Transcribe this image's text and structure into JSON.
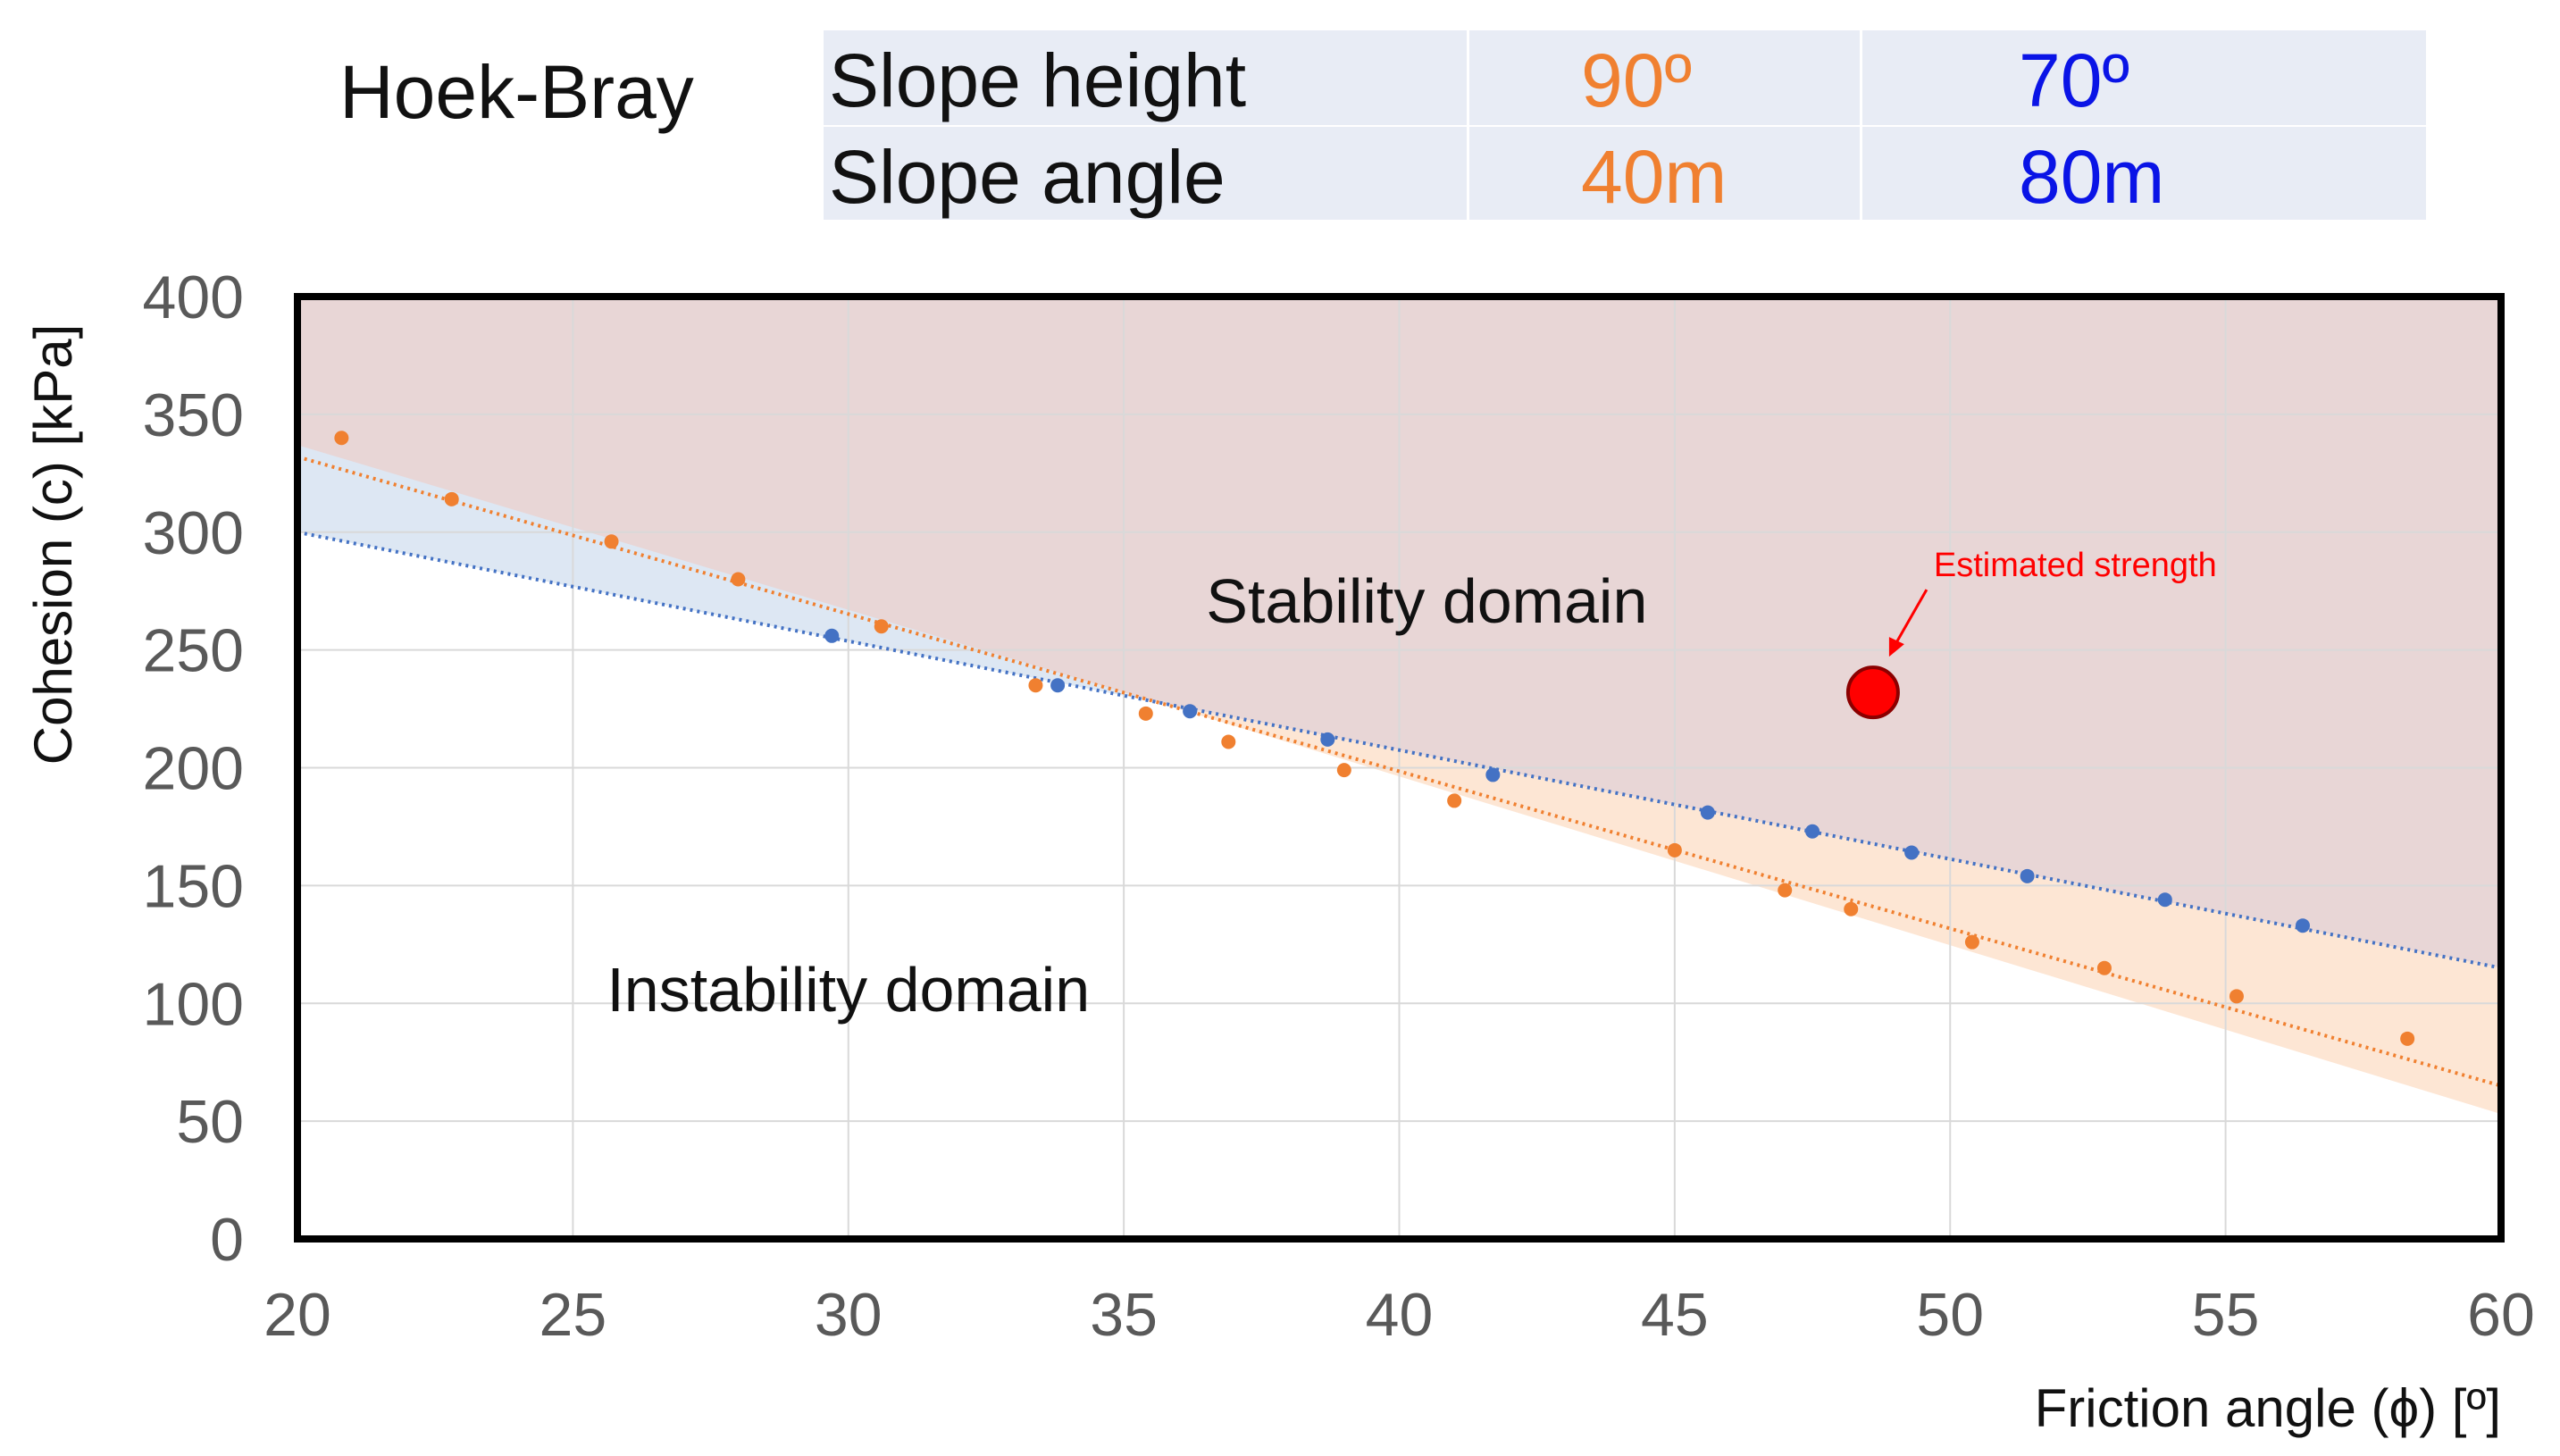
{
  "header": {
    "title": "Hoek-Bray",
    "rows": [
      {
        "label": "Slope height",
        "orange": "90º",
        "blue": "70º"
      },
      {
        "label": "Slope angle",
        "orange": "40m",
        "blue": "80m"
      }
    ]
  },
  "chart_data": {
    "type": "scatter",
    "xlabel": "Friction angle (ϕ) [º]",
    "ylabel": "Cohesion (c) [kPa]",
    "xlim": [
      20,
      60
    ],
    "ylim": [
      0,
      400
    ],
    "xticks": [
      20,
      25,
      30,
      35,
      40,
      45,
      50,
      55,
      60
    ],
    "yticks": [
      0,
      50,
      100,
      150,
      200,
      250,
      300,
      350,
      400
    ],
    "grid": true,
    "colors": {
      "orange": "#f08030",
      "blue": "#4472c4",
      "stable_fill": "#e8d6d6",
      "orange_band": "#fde6d4",
      "blue_band": "#dde7f3",
      "estimate": "#ff0000"
    },
    "series": [
      {
        "name": "90º / 40m",
        "color": "#f08030",
        "x": [
          20.8,
          22.8,
          25.7,
          28.0,
          30.6,
          33.4,
          35.4,
          36.9,
          39.0,
          41.0,
          45.0,
          47.0,
          48.2,
          50.4,
          52.8,
          55.2,
          58.3
        ],
        "y": [
          340,
          314,
          296,
          280,
          260,
          235,
          223,
          211,
          199,
          186,
          165,
          148,
          140,
          126,
          115,
          103,
          85
        ],
        "trend": {
          "x": [
            20,
            60
          ],
          "y": [
            332,
            65
          ]
        }
      },
      {
        "name": "70º / 80m",
        "color": "#4472c4",
        "x": [
          29.7,
          33.8,
          36.2,
          38.7,
          41.7,
          45.6,
          47.5,
          49.3,
          51.4,
          53.9,
          56.4
        ],
        "y": [
          256,
          235,
          224,
          212,
          197,
          181,
          173,
          164,
          154,
          144,
          133
        ],
        "trend": {
          "x": [
            20,
            60
          ],
          "y": [
            300,
            115
          ]
        }
      }
    ],
    "annotations": [
      {
        "text": "Stability domain",
        "x": 40.5,
        "y": 270
      },
      {
        "text": "Instability domain",
        "x": 30,
        "y": 105
      }
    ],
    "estimate": {
      "label": "Estimated strength",
      "x": 48.6,
      "y": 232
    }
  }
}
